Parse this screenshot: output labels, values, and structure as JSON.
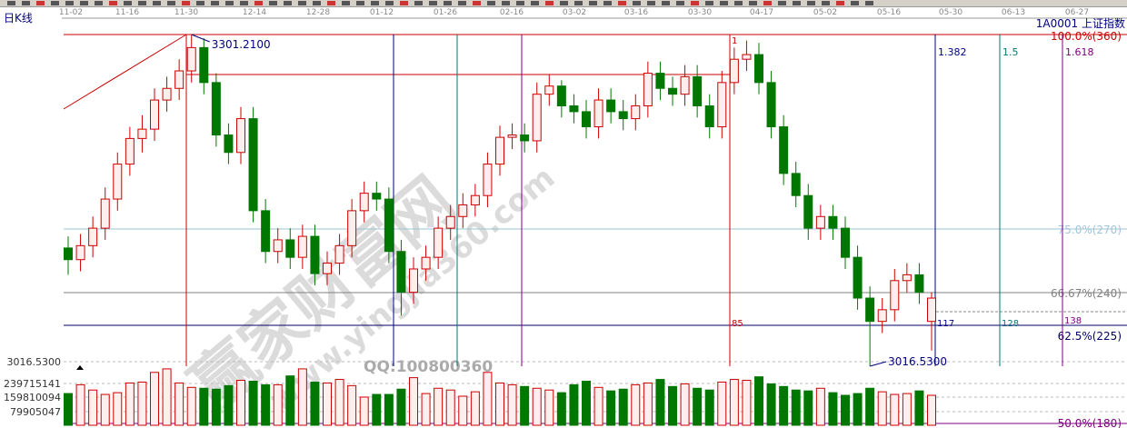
{
  "period_label": "日K线",
  "symbol_label": "1A0001  上证指数",
  "watermark": {
    "site_cn": "赢家财富网",
    "site_url": "www.yingjia360.com",
    "qq": "QQ:100800360"
  },
  "colors": {
    "up": "#cc0000",
    "up_fill": "#ffeeee",
    "down": "#007700",
    "background": "#ffffff"
  },
  "chart_data": {
    "type": "candlestick",
    "x_tick_labels": [
      "11-02",
      "11-16",
      "11-30",
      "12-14",
      "12-28",
      "01-12",
      "01-26",
      "02-16",
      "03-02",
      "03-16",
      "03-30",
      "04-17",
      "05-02",
      "05-16",
      "05-30",
      "06-13",
      "06-27"
    ],
    "price_high_label": "3301.2100",
    "price_low_label": "3016.5300",
    "price_axis_label": "3016.5300",
    "volume_tick_labels": [
      "239715141",
      "159810094",
      "79905047"
    ],
    "volume_ticks": [
      239715141,
      159810094,
      79905047
    ],
    "ylim": [
      3016.53,
      3301.21
    ],
    "fib_levels": [
      {
        "label": "100.0%(360)",
        "color": "#cc0000"
      },
      {
        "label": "75.0%(270)",
        "color": "#9fc5d8"
      },
      {
        "label": "66.67%(240)",
        "color": "#808080"
      },
      {
        "label": "62.5%(225)",
        "color": "#000066"
      },
      {
        "label": "50.0%(180)",
        "color": "#800080"
      }
    ],
    "time_lines": [
      {
        "label": "1",
        "color": "#cc0000"
      },
      {
        "label": "85",
        "color": "#cc0000"
      },
      {
        "label": "117",
        "color": "#000080"
      },
      {
        "label": "128",
        "color": "#007777"
      },
      {
        "label": "138",
        "color": "#800080"
      }
    ],
    "fib_time_ratios": [
      {
        "label": "1.382",
        "color": "#000080"
      },
      {
        "label": "1.5",
        "color": "#007777"
      },
      {
        "label": "1.618",
        "color": "#800080"
      }
    ],
    "candles_ohlc": [
      [
        3118,
        3128,
        3095,
        3108
      ],
      [
        3108,
        3130,
        3098,
        3120
      ],
      [
        3120,
        3145,
        3110,
        3135
      ],
      [
        3135,
        3170,
        3125,
        3160
      ],
      [
        3160,
        3200,
        3150,
        3190
      ],
      [
        3190,
        3222,
        3180,
        3212
      ],
      [
        3212,
        3232,
        3200,
        3220
      ],
      [
        3220,
        3255,
        3210,
        3245
      ],
      [
        3245,
        3265,
        3235,
        3255
      ],
      [
        3255,
        3280,
        3245,
        3270
      ],
      [
        3270,
        3301.21,
        3260,
        3290
      ],
      [
        3290,
        3298,
        3250,
        3260
      ],
      [
        3260,
        3268,
        3205,
        3215
      ],
      [
        3215,
        3225,
        3190,
        3200
      ],
      [
        3200,
        3239,
        3190,
        3229
      ],
      [
        3229,
        3239,
        3140,
        3150
      ],
      [
        3150,
        3160,
        3105,
        3115
      ],
      [
        3115,
        3135,
        3105,
        3125
      ],
      [
        3125,
        3135,
        3100,
        3110
      ],
      [
        3110,
        3138,
        3100,
        3128
      ],
      [
        3128,
        3138,
        3086,
        3096
      ],
      [
        3096,
        3115,
        3086,
        3105
      ],
      [
        3105,
        3130,
        3095,
        3120
      ],
      [
        3120,
        3160,
        3110,
        3150
      ],
      [
        3150,
        3175,
        3140,
        3165
      ],
      [
        3165,
        3175,
        3150,
        3160
      ],
      [
        3160,
        3170,
        3105,
        3115
      ],
      [
        3115,
        3125,
        3060,
        3080
      ],
      [
        3080,
        3110,
        3070,
        3100
      ],
      [
        3100,
        3120,
        3090,
        3110
      ],
      [
        3110,
        3145,
        3100,
        3135
      ],
      [
        3135,
        3155,
        3125,
        3145
      ],
      [
        3145,
        3165,
        3135,
        3155
      ],
      [
        3155,
        3173,
        3145,
        3163
      ],
      [
        3163,
        3200,
        3153,
        3190
      ],
      [
        3190,
        3223,
        3180,
        3213
      ],
      [
        3213,
        3225,
        3203,
        3215
      ],
      [
        3215,
        3225,
        3200,
        3210
      ],
      [
        3210,
        3260,
        3200,
        3250
      ],
      [
        3250,
        3267,
        3240,
        3257
      ],
      [
        3257,
        3262,
        3230,
        3240
      ],
      [
        3240,
        3250,
        3225,
        3235
      ],
      [
        3235,
        3245,
        3212,
        3222
      ],
      [
        3222,
        3255,
        3212,
        3245
      ],
      [
        3245,
        3255,
        3225,
        3235
      ],
      [
        3235,
        3245,
        3219,
        3229
      ],
      [
        3229,
        3250,
        3219,
        3240
      ],
      [
        3240,
        3278,
        3230,
        3268
      ],
      [
        3268,
        3278,
        3245,
        3255
      ],
      [
        3255,
        3265,
        3240,
        3250
      ],
      [
        3250,
        3275,
        3240,
        3265
      ],
      [
        3265,
        3275,
        3230,
        3240
      ],
      [
        3240,
        3250,
        3212,
        3222
      ],
      [
        3222,
        3270,
        3212,
        3260
      ],
      [
        3260,
        3290,
        3250,
        3280
      ],
      [
        3280,
        3296,
        3270,
        3284
      ],
      [
        3284,
        3294,
        3250,
        3260
      ],
      [
        3260,
        3270,
        3212,
        3222
      ],
      [
        3222,
        3232,
        3172,
        3182
      ],
      [
        3182,
        3192,
        3153,
        3163
      ],
      [
        3163,
        3173,
        3125,
        3135
      ],
      [
        3135,
        3155,
        3125,
        3145
      ],
      [
        3145,
        3155,
        3125,
        3135
      ],
      [
        3135,
        3145,
        3100,
        3110
      ],
      [
        3110,
        3120,
        3065,
        3075
      ],
      [
        3075,
        3085,
        3016.53,
        3055
      ],
      [
        3055,
        3075,
        3045,
        3065
      ],
      [
        3065,
        3100,
        3055,
        3090
      ],
      [
        3090,
        3105,
        3080,
        3095
      ],
      [
        3095,
        3105,
        3070,
        3080
      ],
      [
        3055,
        3080,
        3030,
        3075
      ]
    ],
    "volumes": [
      180000000,
      230000000,
      200000000,
      175000000,
      185000000,
      240000000,
      245000000,
      300000000,
      320000000,
      240000000,
      215000000,
      210000000,
      205000000,
      225000000,
      255000000,
      250000000,
      230000000,
      230000000,
      280000000,
      320000000,
      245000000,
      240000000,
      260000000,
      225000000,
      160000000,
      175000000,
      175000000,
      205000000,
      270000000,
      180000000,
      210000000,
      200000000,
      165000000,
      190000000,
      300000000,
      240000000,
      230000000,
      220000000,
      210000000,
      200000000,
      185000000,
      230000000,
      250000000,
      215000000,
      195000000,
      205000000,
      230000000,
      240000000,
      260000000,
      220000000,
      235000000,
      210000000,
      200000000,
      245000000,
      260000000,
      255000000,
      275000000,
      235000000,
      220000000,
      200000000,
      195000000,
      210000000,
      185000000,
      170000000,
      180000000,
      210000000,
      190000000,
      175000000,
      180000000,
      195000000,
      170000000
    ]
  }
}
